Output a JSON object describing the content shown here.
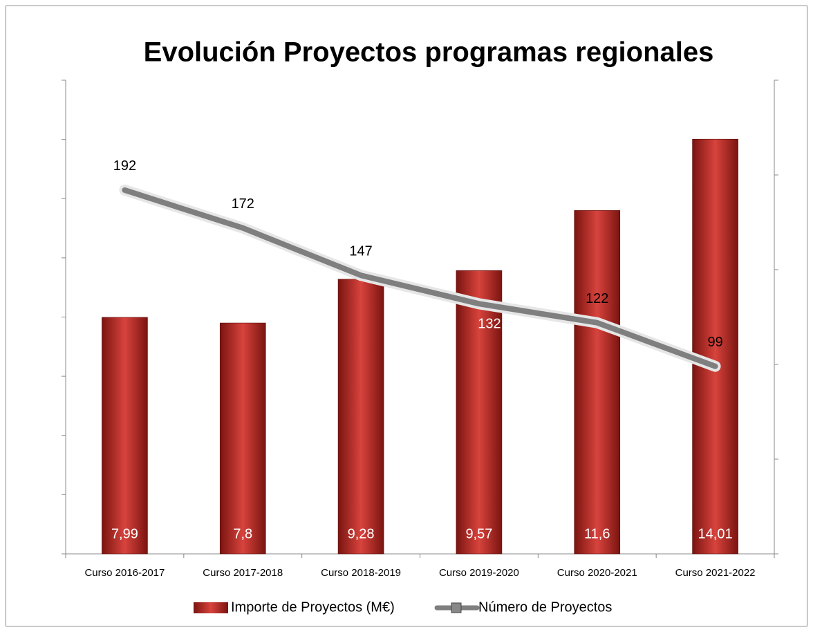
{
  "chart_data": {
    "type": "bar_line",
    "title": "Evolución Proyectos programas regionales",
    "categories": [
      "Curso 2016-2017",
      "Curso 2017-2018",
      "Curso 2018-2019",
      "Curso 2019-2020",
      "Curso 2020-2021",
      "Curso 2021-2022"
    ],
    "series": [
      {
        "name": "Importe de Proyectos (M€)",
        "type": "bar",
        "color": "#c0302c",
        "values": [
          7.99,
          7.8,
          9.28,
          9.57,
          11.6,
          14.01
        ],
        "value_labels": [
          "7,99",
          "7,8",
          "9,28",
          "9,57",
          "11,6",
          "14,01"
        ]
      },
      {
        "name": "Número de Proyectos",
        "type": "line",
        "axis": "y2",
        "color": "#7f7f7f",
        "values": [
          192,
          172,
          147,
          132,
          122,
          99
        ]
      }
    ],
    "ylim": [
      0,
      16
    ],
    "yticks": [
      0,
      2,
      4,
      6,
      8,
      10,
      12,
      14,
      16
    ],
    "y2lim": [
      0,
      250
    ],
    "y2ticks": [
      0,
      50,
      100,
      150,
      200,
      250
    ],
    "legend": "bottom"
  }
}
